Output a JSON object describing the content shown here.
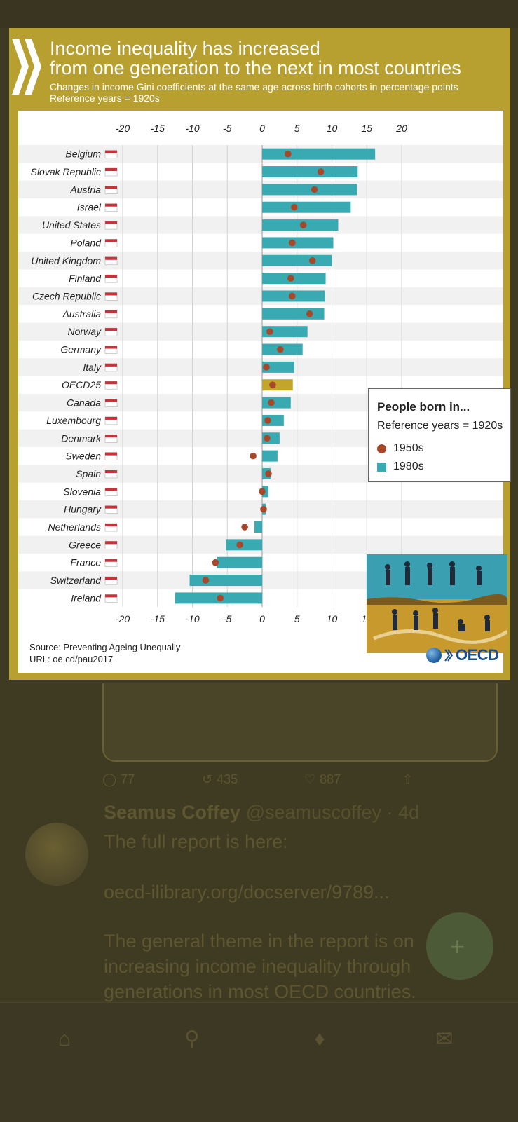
{
  "chart_data": {
    "type": "bar",
    "title": "Income inequality has increased from one generation to the next in most countries",
    "title_line1": "Income inequality has increased",
    "title_line2": "from one generation to the next in most countries",
    "subtitle": "Changes in income Gini coefficients at the same age across birth cohorts in percentage points",
    "reference": "Reference years = 1920s",
    "orientation": "horizontal",
    "xlim": [
      -20,
      20
    ],
    "ticks": [
      -20,
      -15,
      -10,
      -5,
      0,
      5,
      10,
      15,
      20
    ],
    "categories": [
      "Belgium",
      "Slovak Republic",
      "Austria",
      "Israel",
      "United States",
      "Poland",
      "United Kingdom",
      "Finland",
      "Czech Republic",
      "Australia",
      "Norway",
      "Germany",
      "Italy",
      "OECD25",
      "Canada",
      "Luxembourg",
      "Denmark",
      "Sweden",
      "Spain",
      "Slovenia",
      "Hungary",
      "Netherlands",
      "Greece",
      "France",
      "Switzerland",
      "Ireland"
    ],
    "series": [
      {
        "name": "1980s",
        "marker": "bar",
        "color": "#3aaab2",
        "values": [
          16.2,
          13.7,
          13.6,
          12.7,
          10.9,
          10.2,
          10.0,
          9.1,
          9.0,
          8.9,
          6.5,
          5.8,
          4.6,
          4.4,
          4.1,
          3.1,
          2.5,
          2.2,
          1.2,
          0.9,
          0.5,
          -1.1,
          -5.2,
          -6.5,
          -10.4,
          -12.5
        ]
      },
      {
        "name": "1950s",
        "marker": "dot",
        "color": "#a8482a",
        "values": [
          3.7,
          8.4,
          7.5,
          4.6,
          5.9,
          4.3,
          7.2,
          4.1,
          4.3,
          6.8,
          1.1,
          2.6,
          0.6,
          1.5,
          1.3,
          0.8,
          0.7,
          -1.3,
          0.9,
          0.0,
          0.2,
          -2.5,
          -3.2,
          -6.7,
          -8.1,
          -6.0
        ]
      }
    ],
    "highlight": "OECD25",
    "highlight_color": "#c4a52c",
    "legend": {
      "title": "People born in...",
      "subtitle": "Reference years = 1920s",
      "placement": "right-middle"
    }
  },
  "source_line1": "Source: Preventing Ageing Unequally",
  "source_line2": "URL: oe.cd/pau2017",
  "logo_text": "OECD",
  "background_tweet": {
    "reply_count": "77",
    "retweet_count": "435",
    "like_count": "887",
    "author_name": "Seamus Coffey",
    "author_handle": "@seamuscoffey · 4d",
    "text_line1": "The full report is here:",
    "link_text": "oecd-ilibrary.org/docserver/9789...",
    "text_line2": "The general theme in the report is on",
    "text_line3": "increasing income inequality through",
    "text_line4": "generations in most OECD countries."
  },
  "nav": [
    "home-icon",
    "search-icon",
    "bell-icon",
    "mail-icon"
  ]
}
